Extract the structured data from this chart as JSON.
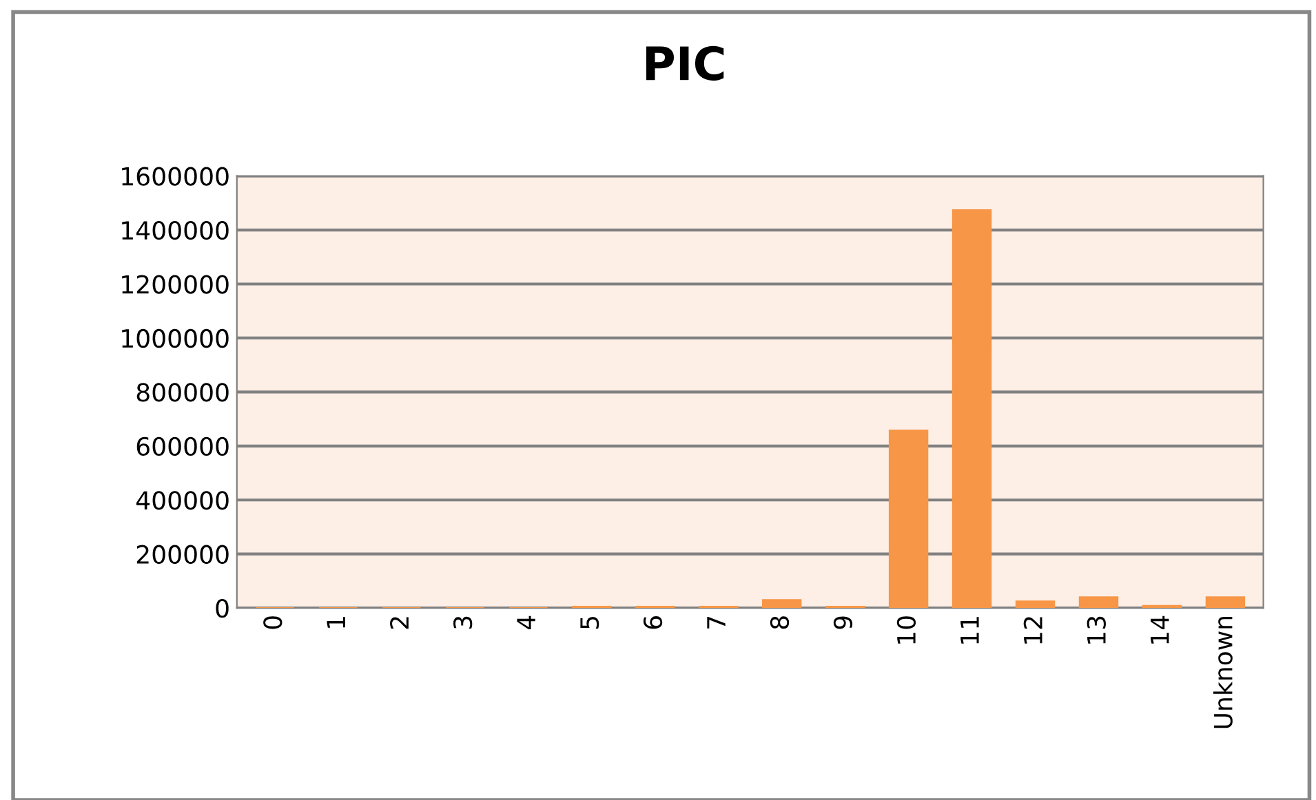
{
  "chart_data": {
    "type": "bar",
    "title": "PIC",
    "categories": [
      "0",
      "1",
      "2",
      "3",
      "4",
      "5",
      "6",
      "7",
      "8",
      "9",
      "10",
      "11",
      "12",
      "13",
      "14",
      "Unknown"
    ],
    "values": [
      0,
      0,
      0,
      0,
      0,
      5000,
      5000,
      5000,
      30000,
      5000,
      658000,
      1474000,
      25000,
      40000,
      8000,
      40000
    ],
    "color": "#f79646",
    "ylim": [
      0,
      1600000
    ],
    "yticks": [
      0,
      200000,
      400000,
      600000,
      800000,
      1000000,
      1200000,
      1400000,
      1600000
    ],
    "grid": "y"
  }
}
